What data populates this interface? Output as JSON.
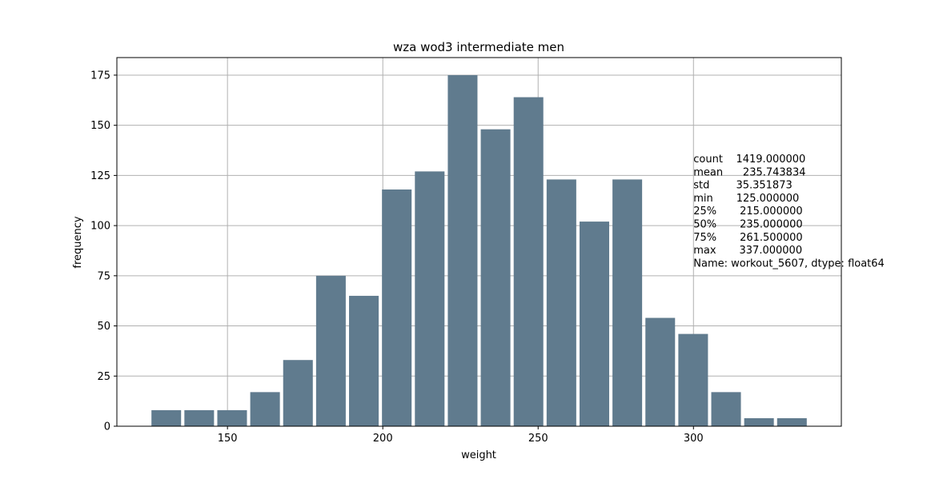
{
  "chart_data": {
    "type": "bar",
    "title": "wza wod3 intermediate men",
    "xlabel": "weight",
    "ylabel": "frequency",
    "xlim": [
      114.4,
      347.6
    ],
    "ylim": [
      0,
      183.75
    ],
    "xticks": [
      150,
      200,
      250,
      300
    ],
    "yticks": [
      0,
      25,
      50,
      75,
      100,
      125,
      150,
      175
    ],
    "grid": true,
    "bar_color": "#607b8e",
    "bins": [
      {
        "x0": 125.0,
        "x1": 135.6,
        "value": 8
      },
      {
        "x0": 135.6,
        "x1": 146.2,
        "value": 8
      },
      {
        "x0": 146.2,
        "x1": 156.8,
        "value": 8
      },
      {
        "x0": 156.8,
        "x1": 167.4,
        "value": 17
      },
      {
        "x0": 167.4,
        "x1": 178.0,
        "value": 33
      },
      {
        "x0": 178.0,
        "x1": 188.6,
        "value": 75
      },
      {
        "x0": 188.6,
        "x1": 199.2,
        "value": 65
      },
      {
        "x0": 199.2,
        "x1": 209.8,
        "value": 118
      },
      {
        "x0": 209.8,
        "x1": 220.4,
        "value": 127
      },
      {
        "x0": 220.4,
        "x1": 231.0,
        "value": 175
      },
      {
        "x0": 231.0,
        "x1": 241.6,
        "value": 148
      },
      {
        "x0": 241.6,
        "x1": 252.2,
        "value": 164
      },
      {
        "x0": 252.2,
        "x1": 262.8,
        "value": 123
      },
      {
        "x0": 262.8,
        "x1": 273.4,
        "value": 102
      },
      {
        "x0": 273.4,
        "x1": 284.0,
        "value": 123
      },
      {
        "x0": 284.0,
        "x1": 294.6,
        "value": 54
      },
      {
        "x0": 294.6,
        "x1": 305.2,
        "value": 46
      },
      {
        "x0": 305.2,
        "x1": 315.8,
        "value": 17
      },
      {
        "x0": 315.8,
        "x1": 326.4,
        "value": 4
      },
      {
        "x0": 326.4,
        "x1": 337.0,
        "value": 4
      }
    ],
    "annotation": {
      "position_x": 300,
      "lines": [
        "count    1419.000000",
        "mean      235.743834",
        "std        35.351873",
        "min       125.000000",
        "25%       215.000000",
        "50%       235.000000",
        "75%       261.500000",
        "max       337.000000",
        "Name: workout_5607, dtype: float64"
      ]
    }
  }
}
